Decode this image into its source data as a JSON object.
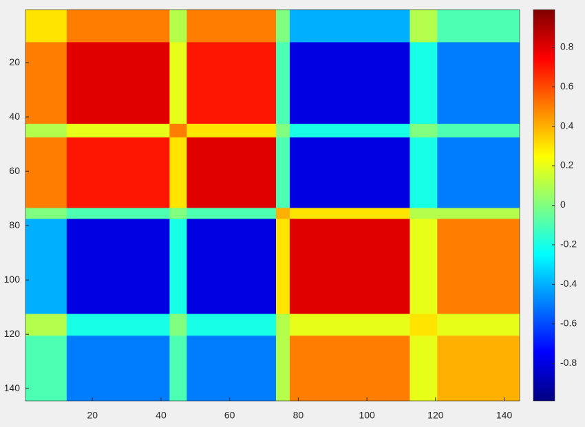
{
  "chart_data": {
    "type": "heatmap",
    "x": [
      0.5,
      12.5,
      42.5,
      47.5,
      73.5,
      77.5,
      112.5,
      120.5,
      144.5
    ],
    "y": [
      0.5,
      12.5,
      42.5,
      47.5,
      73.5,
      77.5,
      112.5,
      120.5,
      144.5
    ],
    "values": [
      [
        0.3,
        0.5,
        0.1,
        0.5,
        0.0,
        -0.4,
        0.1,
        -0.1
      ],
      [
        0.5,
        0.8,
        0.2,
        0.7,
        -0.1,
        -0.8,
        -0.2,
        -0.5
      ],
      [
        0.1,
        0.2,
        0.5,
        0.3,
        0.0,
        -0.2,
        0.0,
        -0.1
      ],
      [
        0.5,
        0.7,
        0.3,
        0.8,
        -0.1,
        -0.8,
        -0.2,
        -0.5
      ],
      [
        0.0,
        -0.1,
        0.0,
        -0.1,
        0.4,
        0.3,
        0.1,
        0.1
      ],
      [
        -0.4,
        -0.8,
        -0.2,
        -0.8,
        0.3,
        0.8,
        0.2,
        0.5
      ],
      [
        0.1,
        -0.2,
        0.0,
        -0.2,
        0.1,
        0.2,
        0.3,
        0.2
      ],
      [
        -0.1,
        -0.5,
        -0.1,
        -0.5,
        0.1,
        0.5,
        0.2,
        0.4
      ]
    ],
    "xlim": [
      0.5,
      144.5
    ],
    "ylim": [
      0.5,
      144.5
    ],
    "xticks": [
      20,
      40,
      60,
      80,
      100,
      120,
      140
    ],
    "yticks": [
      20,
      40,
      60,
      80,
      100,
      120,
      140
    ],
    "colormap": "jet",
    "clim": [
      -0.99,
      0.99
    ],
    "colorbar_ticks": [
      -0.8,
      -0.6,
      -0.4,
      -0.2,
      0,
      0.2,
      0.4,
      0.6,
      0.8
    ]
  }
}
